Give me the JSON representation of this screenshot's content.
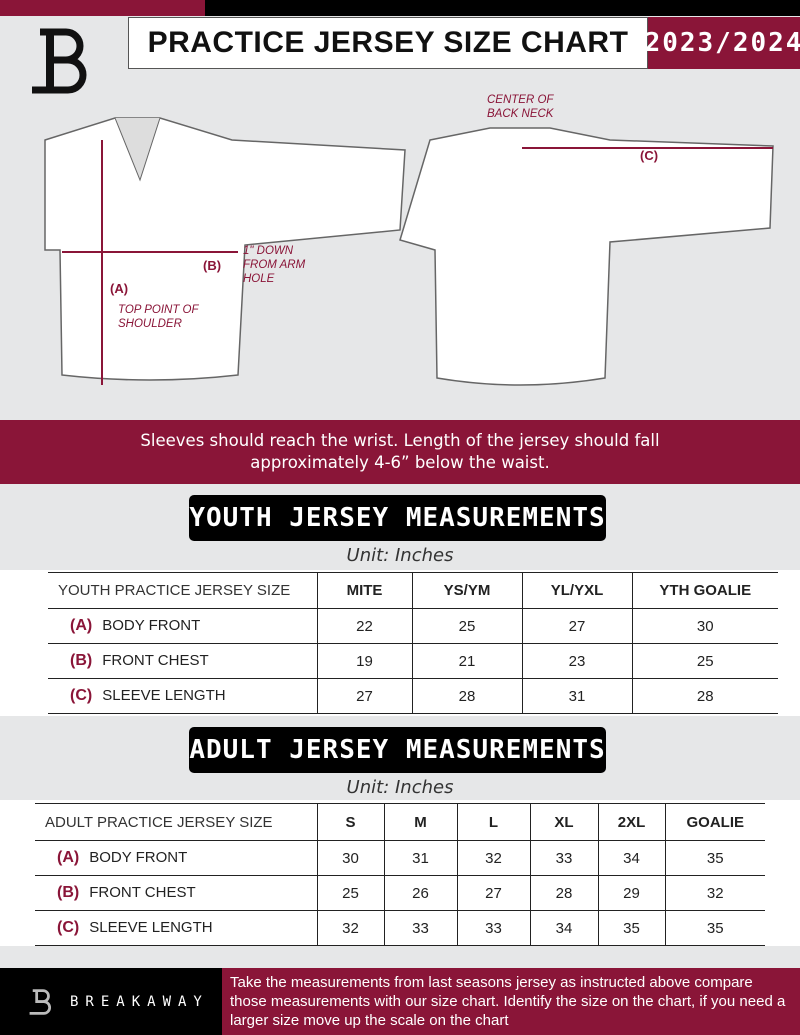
{
  "header": {
    "title": "PRACTICE JERSEY SIZE CHART",
    "season": "2023/2024"
  },
  "colors": {
    "accent": "#8a1538",
    "dark": "#000000",
    "background": "#e6e7e8"
  },
  "diagram": {
    "front": {
      "label_a": "(A)",
      "label_b": "(B)",
      "note_b": "1\" DOWN FROM ARM HOLE",
      "note_a": "TOP POINT OF SHOULDER"
    },
    "back": {
      "label_c": "(C)",
      "note_c": "CENTER OF BACK NECK"
    }
  },
  "banner": {
    "line1": "Sleeves should reach the wrist. Length of the jersey should fall",
    "line2": "approximately 4-6” below the waist."
  },
  "youth": {
    "heading": "YOUTH JERSEY MEASUREMENTS",
    "unit": "Unit: Inches",
    "columns": [
      "YOUTH PRACTICE JERSEY SIZE",
      "MITE",
      "YS/YM",
      "YL/YXL",
      "YTH GOALIE"
    ],
    "rows": [
      {
        "code": "(A)",
        "label": "BODY FRONT",
        "values": [
          "22",
          "25",
          "27",
          "30"
        ]
      },
      {
        "code": "(B)",
        "label": "FRONT CHEST",
        "values": [
          "19",
          "21",
          "23",
          "25"
        ]
      },
      {
        "code": "(C)",
        "label": "SLEEVE LENGTH",
        "values": [
          "27",
          "28",
          "31",
          "28"
        ]
      }
    ]
  },
  "adult": {
    "heading": "ADULT JERSEY MEASUREMENTS",
    "unit": "Unit: Inches",
    "columns": [
      "ADULT PRACTICE JERSEY SIZE",
      "S",
      "M",
      "L",
      "XL",
      "2XL",
      "GOALIE"
    ],
    "rows": [
      {
        "code": "(A)",
        "label": "BODY FRONT",
        "values": [
          "30",
          "31",
          "32",
          "33",
          "34",
          "35"
        ]
      },
      {
        "code": "(B)",
        "label": "FRONT CHEST",
        "values": [
          "25",
          "26",
          "27",
          "28",
          "29",
          "32"
        ]
      },
      {
        "code": "(C)",
        "label": "SLEEVE LENGTH",
        "values": [
          "32",
          "33",
          "33",
          "34",
          "35",
          "35"
        ]
      }
    ]
  },
  "footer": {
    "brand": "BREAKAWAY",
    "text": "Take the measurements from last seasons jersey as instructed above compare those measurements  with our size chart. Identify the size on the chart, if you need a larger size move up the scale on the chart"
  }
}
